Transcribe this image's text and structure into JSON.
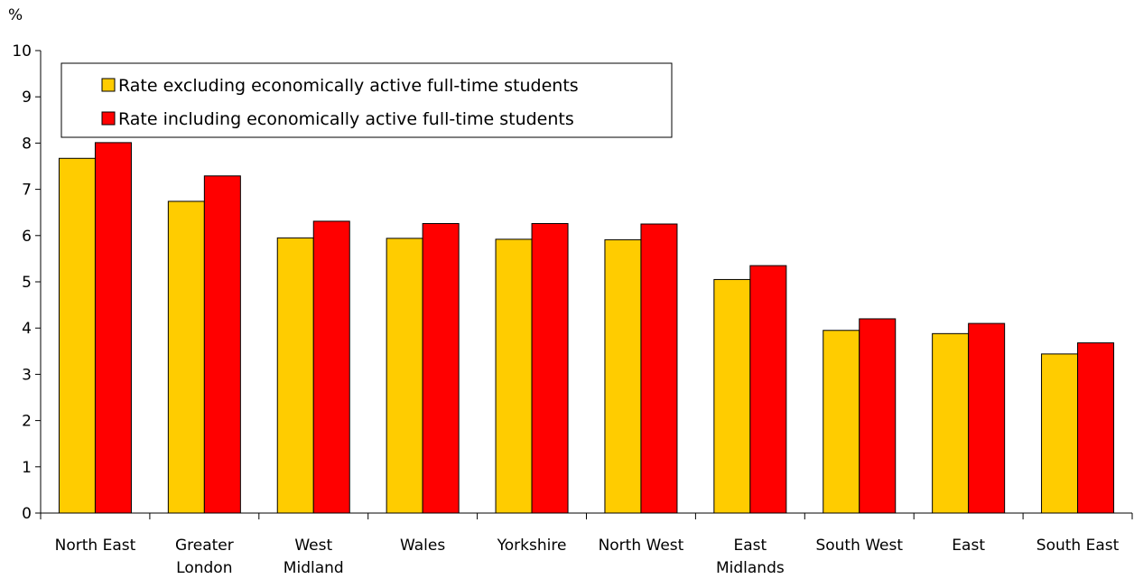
{
  "chart_data": {
    "type": "bar",
    "ylabel": "%",
    "ylim": [
      0,
      10
    ],
    "yticks": [
      0,
      1,
      2,
      3,
      4,
      5,
      6,
      7,
      8,
      9,
      10
    ],
    "categories": [
      [
        "North East"
      ],
      [
        "Greater",
        "London"
      ],
      [
        "West",
        "Midland"
      ],
      [
        "Wales"
      ],
      [
        "Yorkshire"
      ],
      [
        "North West"
      ],
      [
        "East",
        "Midlands"
      ],
      [
        "South West"
      ],
      [
        "East"
      ],
      [
        "South East"
      ]
    ],
    "series": [
      {
        "name": "Rate excluding economically active full-time students",
        "color": "#FFCC00",
        "values": [
          7.67,
          6.74,
          5.95,
          5.94,
          5.92,
          5.91,
          5.05,
          3.95,
          3.88,
          3.44
        ]
      },
      {
        "name": "Rate including economically active full-time students",
        "color": "#FF0000",
        "values": [
          8.01,
          7.29,
          6.31,
          6.26,
          6.26,
          6.25,
          5.35,
          4.2,
          4.1,
          3.68
        ]
      }
    ],
    "legend": "top-left",
    "grid": false
  }
}
